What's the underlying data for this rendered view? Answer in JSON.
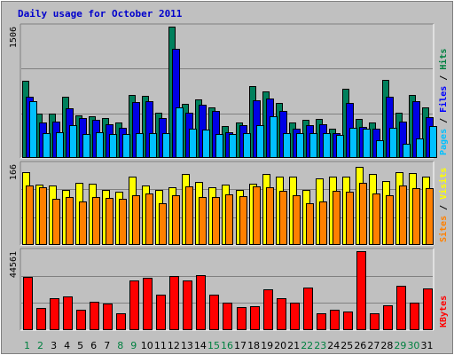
{
  "chart_data": {
    "type": "bar",
    "title": "Daily usage for October 2011",
    "categories": [
      "1",
      "2",
      "3",
      "4",
      "5",
      "6",
      "7",
      "8",
      "9",
      "10",
      "11",
      "12",
      "13",
      "14",
      "15",
      "16",
      "17",
      "18",
      "19",
      "20",
      "21",
      "22",
      "23",
      "24",
      "25",
      "26",
      "27",
      "28",
      "29",
      "30",
      "31"
    ],
    "weekend_days": [
      "1",
      "2",
      "8",
      "9",
      "15",
      "16",
      "22",
      "23",
      "29",
      "30"
    ],
    "panels": [
      {
        "id": "hits-panel",
        "ymax": 1506,
        "ymax_label": "1506",
        "side_label": [
          {
            "text": "Pages",
            "color": "#00c0ff"
          },
          {
            "text": " / ",
            "color": "#000000"
          },
          {
            "text": "Files",
            "color": "#0000ff"
          },
          {
            "text": " / ",
            "color": "#000000"
          },
          {
            "text": "Hits",
            "color": "#008040"
          }
        ],
        "series": [
          {
            "name": "Hits",
            "color": "#00805c",
            "values": [
              885,
              505,
              510,
              700,
              485,
              480,
              455,
              410,
              720,
              715,
              515,
              1506,
              620,
              675,
              585,
              370,
              410,
              825,
              765,
              635,
              410,
              435,
              445,
              340,
              795,
              445,
              410,
              895,
              515,
              720,
              585
            ]
          },
          {
            "name": "Files",
            "color": "#0000e6",
            "values": [
              705,
              410,
              420,
              565,
              455,
              440,
              390,
              350,
              645,
              650,
              460,
              1250,
              520,
              610,
              535,
              300,
              375,
              665,
              685,
              540,
              335,
              380,
              385,
              290,
              630,
              360,
              340,
              700,
              415,
              650,
              470
            ]
          },
          {
            "name": "Pages",
            "color": "#00c0ff",
            "values": [
              650,
              290,
              295,
              375,
              275,
              295,
              270,
              275,
              290,
              285,
              280,
              575,
              340,
              330,
              275,
              275,
              285,
              380,
              480,
              285,
              280,
              280,
              280,
              260,
              345,
              340,
              200,
              345,
              165,
              220,
              365
            ]
          }
        ]
      },
      {
        "id": "visits-panel",
        "ymax": 166,
        "ymax_label": "166",
        "side_label": [
          {
            "text": "Sites",
            "color": "#ff8000"
          },
          {
            "text": " / ",
            "color": "#000000"
          },
          {
            "text": "Visits",
            "color": "#ffff00"
          }
        ],
        "series": [
          {
            "name": "Visits",
            "color": "#ffff00",
            "values": [
              150,
              124,
              122,
              114,
              128,
              125,
              114,
              110,
              141,
              122,
              114,
              119,
              146,
              130,
              118,
              124,
              114,
              126,
              146,
              141,
              140,
              114,
              137,
              141,
              141,
              160,
              146,
              131,
              149,
              148,
              141
            ]
          },
          {
            "name": "Sites",
            "color": "#ff8000",
            "values": [
              122,
              118,
              95,
              98,
              90,
              98,
              96,
              95,
              102,
              106,
              86,
              102,
              120,
              98,
              98,
              104,
              100,
              120,
              118,
              112,
              103,
              86,
              90,
              111,
              110,
              127,
              106,
              103,
              122,
              116,
              117
            ]
          }
        ]
      },
      {
        "id": "kbytes-panel",
        "ymax": 44561,
        "ymax_label": "44561",
        "side_label": [
          {
            "text": "KBytes",
            "color": "#ff0000"
          }
        ],
        "series": [
          {
            "name": "KBytes",
            "color": "#ff0000",
            "values": [
              30000,
              12500,
              18000,
              19000,
              11500,
              16000,
              15000,
              9500,
              28000,
              29500,
              20000,
              30500,
              28000,
              31000,
              20000,
              15500,
              13000,
              13500,
              23000,
              18000,
              15500,
              24000,
              9500,
              11600,
              10500,
              44561,
              9500,
              14100,
              25000,
              15500,
              23500
            ]
          }
        ]
      }
    ]
  }
}
